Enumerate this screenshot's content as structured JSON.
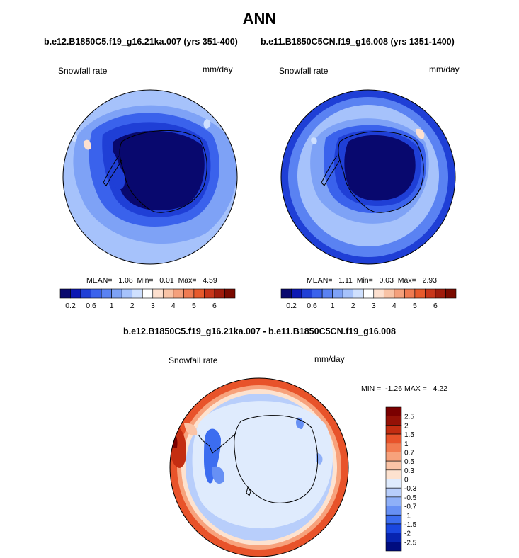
{
  "title": "ANN",
  "panel_a": {
    "case_caption": "b.e12.B1850C5.f19_g16.21ka.007 (yrs 351-400)",
    "variable": "Snowfall rate",
    "units": "mm/day",
    "stats": "MEAN=   1.08  Min=   0.01  Max=   4.59"
  },
  "panel_b": {
    "case_caption": "b.e11.B1850C5CN.f19_g16.008 (yrs 1351-1400)",
    "variable": "Snowfall rate",
    "units": "mm/day",
    "stats": "MEAN=   1.11  Min=   0.03  Max=   2.93"
  },
  "panel_diff": {
    "case_caption": "b.e12.B1850C5.f19_g16.21ka.007 - b.e11.B1850C5CN.f19_g16.008",
    "variable": "Snowfall rate",
    "units": "mm/day",
    "stats": "MIN =  -1.26 MAX =   4.22"
  },
  "colors": {
    "abs_levels": [
      "#08086e",
      "#0b18b3",
      "#1f3fd6",
      "#3a62ec",
      "#5a82f2",
      "#7ea2f6",
      "#a6c2fb",
      "#cfe0fe",
      "#ffffff",
      "#fde0cf",
      "#f8c3a6",
      "#f4a07c",
      "#ef7b52",
      "#e75a2c",
      "#c8361a",
      "#a01c0c",
      "#7a0a00"
    ],
    "diff_levels": [
      "#000c7f",
      "#0724b0",
      "#1a47e0",
      "#3c6df0",
      "#6790f4",
      "#8fb0f8",
      "#b8cefb",
      "#dfebfd",
      "#fde2cf",
      "#fbc4a6",
      "#f7a27c",
      "#f27b50",
      "#e8532a",
      "#c32d11",
      "#951106",
      "#7a0000"
    ]
  },
  "chart_data": [
    {
      "type": "heatmap",
      "projection": "south polar stereographic",
      "title": "b.e12.B1850C5.f19_g16.21ka.007 (yrs 351-400)",
      "variable": "Snowfall rate",
      "units": "mm/day",
      "colorbar_ticks": [
        "0.2",
        "0.6",
        "1",
        "2",
        "3",
        "4",
        "5",
        "6"
      ],
      "mean": 1.08,
      "min": 0.01,
      "max": 4.59
    },
    {
      "type": "heatmap",
      "projection": "south polar stereographic",
      "title": "b.e11.B1850C5CN.f19_g16.008 (yrs 1351-1400)",
      "variable": "Snowfall rate",
      "units": "mm/day",
      "colorbar_ticks": [
        "0.2",
        "0.6",
        "1",
        "2",
        "3",
        "4",
        "5",
        "6"
      ],
      "mean": 1.11,
      "min": 0.03,
      "max": 2.93
    },
    {
      "type": "heatmap",
      "projection": "south polar stereographic",
      "title": "b.e12.B1850C5.f19_g16.21ka.007 - b.e11.B1850C5CN.f19_g16.008",
      "variable": "Snowfall rate",
      "units": "mm/day",
      "colorbar_ticks": [
        "2.5",
        "2",
        "1.5",
        "1",
        "0.7",
        "0.5",
        "0.3",
        "0",
        "-0.3",
        "-0.5",
        "-0.7",
        "-1",
        "-1.5",
        "-2",
        "-2.5"
      ],
      "min": -1.26,
      "max": 4.22
    }
  ]
}
